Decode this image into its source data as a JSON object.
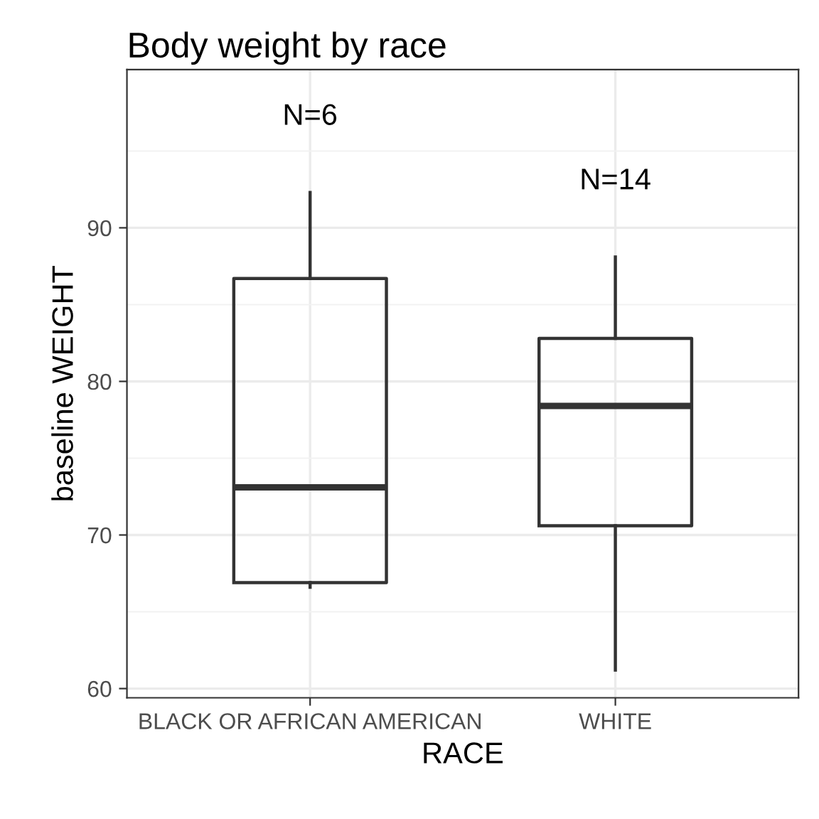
{
  "chart_data": {
    "type": "box",
    "title": "Body weight by race",
    "xlabel": "RACE",
    "ylabel": "baseline WEIGHT",
    "categories": [
      "BLACK OR AFRICAN AMERICAN",
      "WHITE"
    ],
    "boxes": [
      {
        "low": 66.6,
        "q1": 66.9,
        "median": 73.1,
        "q3": 86.7,
        "high": 92.3
      },
      {
        "low": 61.2,
        "q1": 70.6,
        "median": 78.4,
        "q3": 82.8,
        "high": 88.1
      }
    ],
    "ylim": [
      59.4,
      100.3
    ],
    "yticks": [
      60,
      70,
      80,
      90
    ],
    "grid": true,
    "annotations": [
      "N=6",
      "N=14"
    ]
  }
}
